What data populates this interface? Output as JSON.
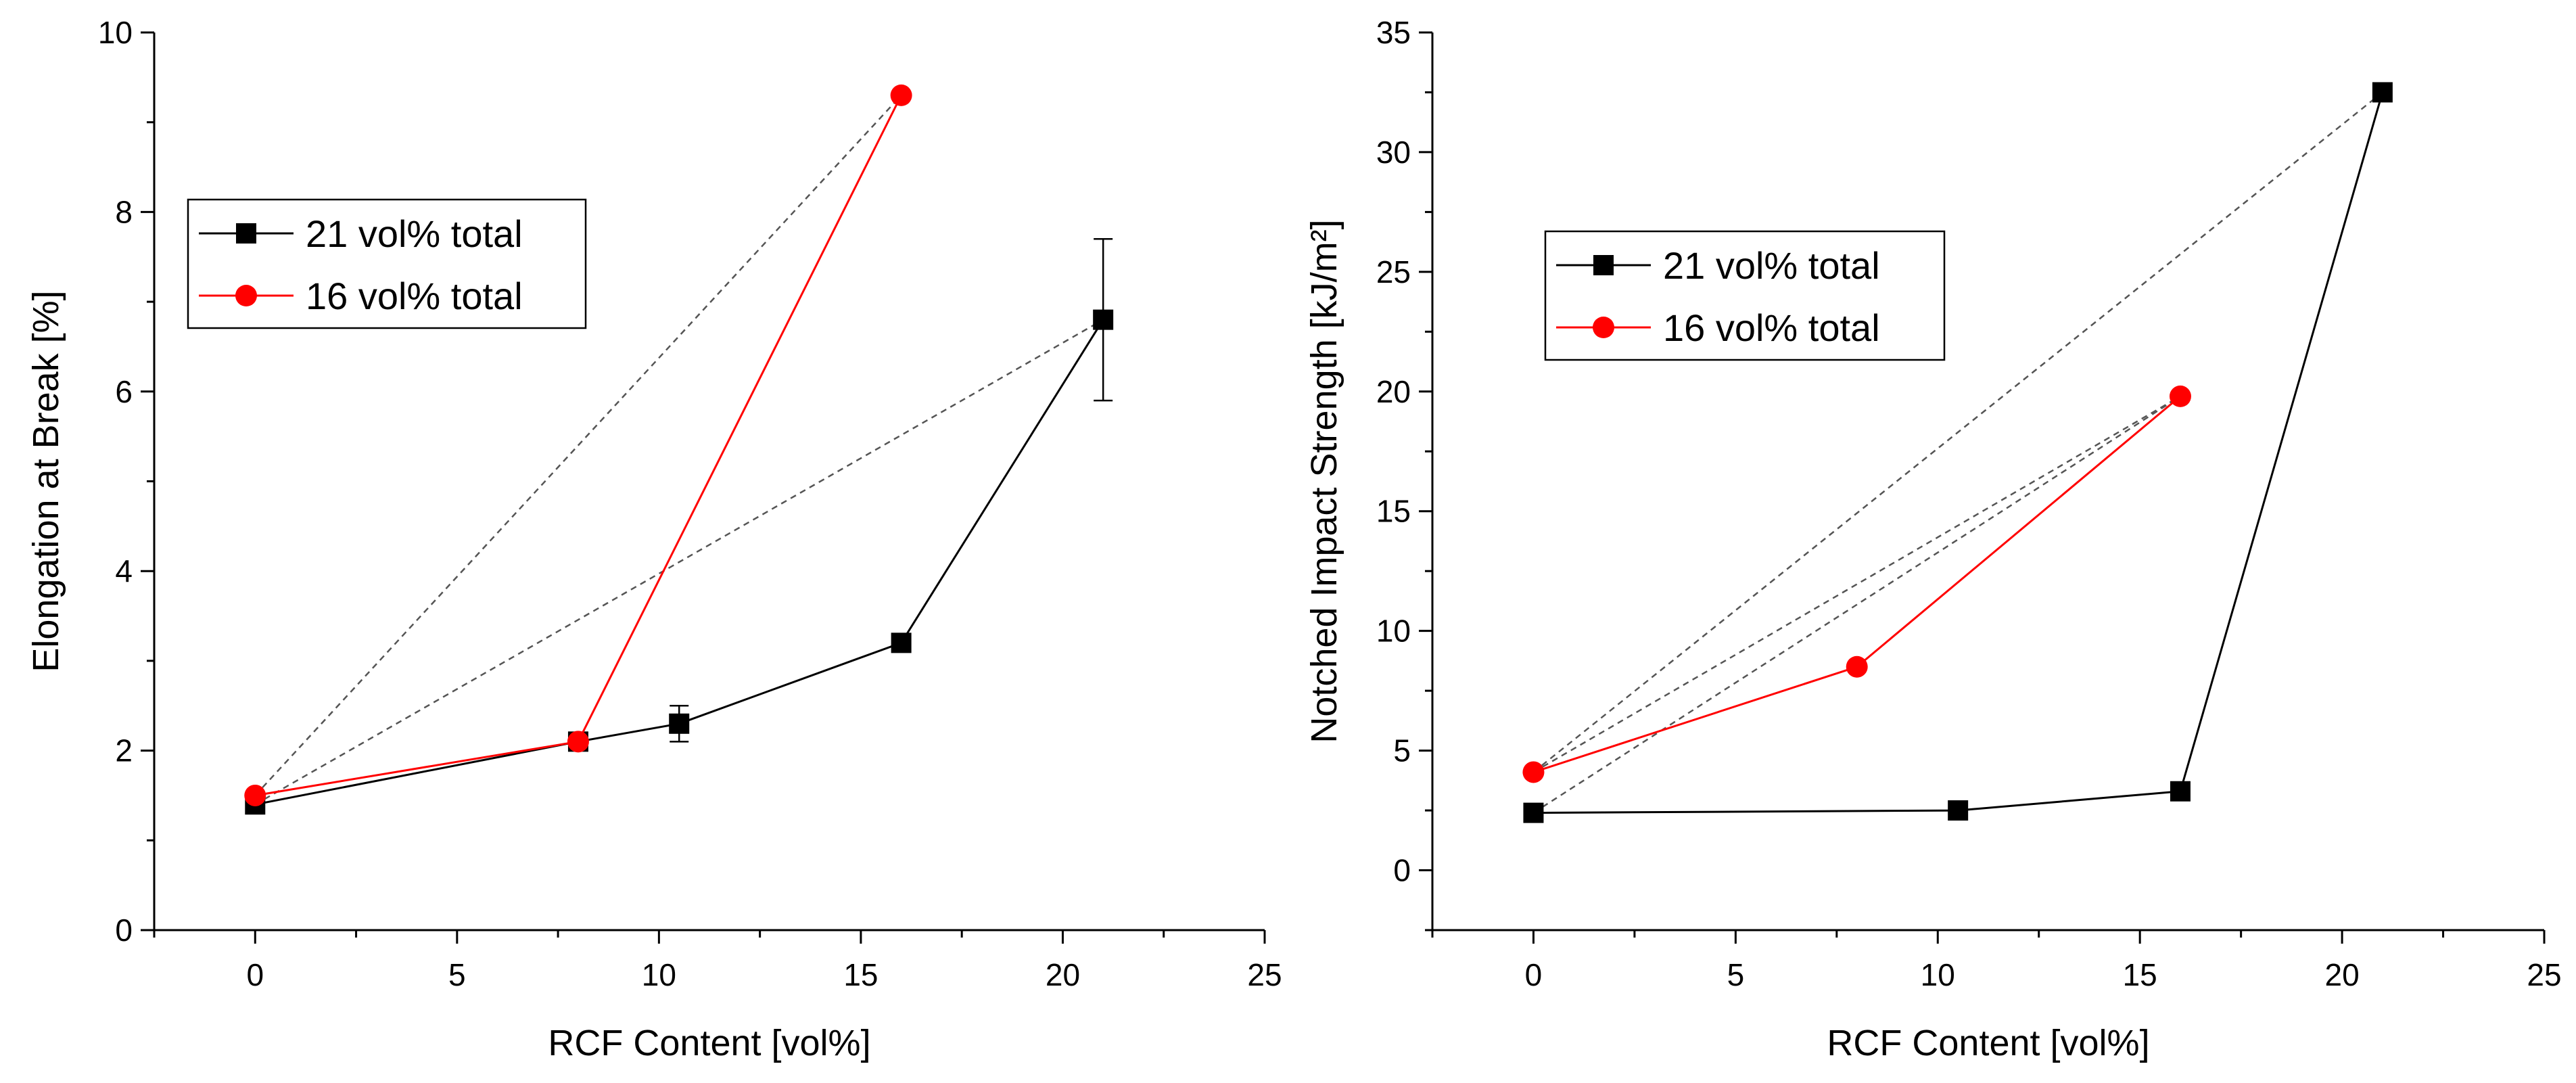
{
  "chart_data": [
    {
      "type": "line",
      "xlabel": "RCF Content [vol%]",
      "ylabel": "Elongation at Break [%]",
      "xlim": [
        -2.5,
        25
      ],
      "ylim": [
        0,
        10
      ],
      "xticks": [
        0,
        5,
        10,
        15,
        20,
        25
      ],
      "yticks": [
        0,
        2,
        4,
        6,
        8,
        10
      ],
      "x_minor_step": 2.5,
      "y_minor_step": 1,
      "legend_placement": "upper-left",
      "series": [
        {
          "name": "21 vol% total",
          "color": "#000000",
          "marker": "square",
          "x": [
            0,
            8,
            10.5,
            16,
            21
          ],
          "y": [
            1.4,
            2.1,
            2.3,
            3.2,
            6.8
          ],
          "err": [
            0,
            0,
            0.2,
            0,
            0.9
          ]
        },
        {
          "name": "16 vol% total",
          "color": "#ff0000",
          "marker": "circle",
          "x": [
            0,
            8,
            16
          ],
          "y": [
            1.5,
            2.1,
            9.3
          ],
          "err": [
            0,
            0,
            0
          ]
        }
      ],
      "dashed_lines": [
        {
          "x": [
            0,
            16
          ],
          "y": [
            1.5,
            9.3
          ]
        },
        {
          "x": [
            0,
            21
          ],
          "y": [
            1.4,
            6.8
          ]
        }
      ]
    },
    {
      "type": "line",
      "xlabel": "RCF Content [vol%]",
      "ylabel": "Notched Impact Strength [kJ/m²]",
      "xlim": [
        -2.5,
        25
      ],
      "ylim": [
        -2.5,
        35
      ],
      "xticks": [
        0,
        5,
        10,
        15,
        20,
        25
      ],
      "yticks": [
        0,
        5,
        10,
        15,
        20,
        25,
        30,
        35
      ],
      "x_minor_step": 2.5,
      "y_minor_step": 2.5,
      "legend_placement": "upper-left",
      "series": [
        {
          "name": "21 vol% total",
          "color": "#000000",
          "marker": "square",
          "x": [
            0,
            10.5,
            16,
            21
          ],
          "y": [
            2.4,
            2.5,
            3.3,
            32.5
          ],
          "err": [
            0,
            0,
            0,
            0
          ]
        },
        {
          "name": "16 vol% total",
          "color": "#ff0000",
          "marker": "circle",
          "x": [
            0,
            8,
            16
          ],
          "y": [
            4.1,
            8.5,
            19.8
          ],
          "err": [
            0,
            0,
            0
          ]
        }
      ],
      "dashed_lines": [
        {
          "x": [
            0,
            21
          ],
          "y": [
            4.1,
            32.5
          ]
        },
        {
          "x": [
            0,
            16
          ],
          "y": [
            4.1,
            19.8
          ]
        },
        {
          "x": [
            0,
            16
          ],
          "y": [
            2.4,
            19.8
          ]
        }
      ]
    }
  ]
}
